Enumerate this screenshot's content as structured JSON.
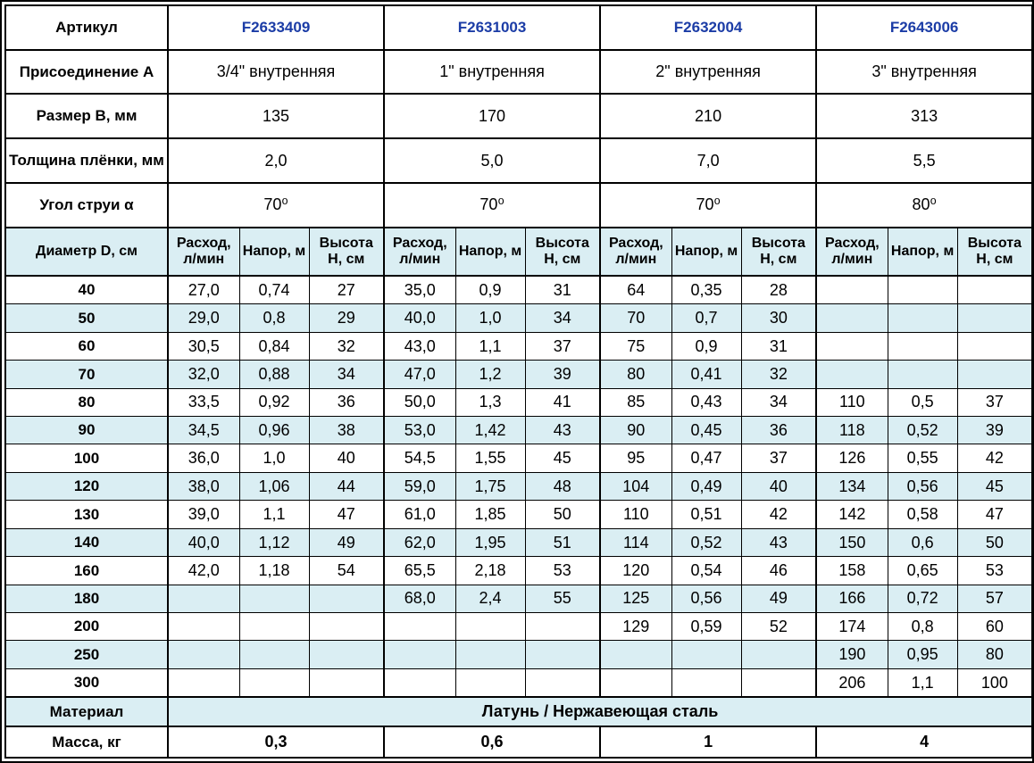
{
  "colors": {
    "accent_blue": "#1b3ca6",
    "row_alt_blue": "#daeef3",
    "border": "#000000"
  },
  "table": {
    "spec_rows": [
      {
        "label": "Артикул",
        "style": "article",
        "values": [
          "F2633409",
          "F2631003",
          "F2632004",
          "F2643006"
        ]
      },
      {
        "label": "Присоединение А",
        "values": [
          "3/4\" внутренняя",
          "1\" внутренняя",
          "2\" внутренняя",
          "3\" внутренняя"
        ]
      },
      {
        "label": "Размер В, мм",
        "values": [
          "135",
          "170",
          "210",
          "313"
        ]
      },
      {
        "label": "Толщина плёнки, мм",
        "values": [
          "2,0",
          "5,0",
          "7,0",
          "5,5"
        ]
      },
      {
        "label": "Угол струи α",
        "values": [
          "70⁰",
          "70⁰",
          "70⁰",
          "80⁰"
        ]
      }
    ],
    "subheader": {
      "label": "Диаметр D, см",
      "columns": [
        "Расход, л/мин",
        "Напор, м",
        "Высота Н, см"
      ],
      "groups": 4
    },
    "data_rows": [
      {
        "diameter": "40",
        "cells": [
          "27,0",
          "0,74",
          "27",
          "35,0",
          "0,9",
          "31",
          "64",
          "0,35",
          "28",
          "",
          "",
          ""
        ]
      },
      {
        "diameter": "50",
        "cells": [
          "29,0",
          "0,8",
          "29",
          "40,0",
          "1,0",
          "34",
          "70",
          "0,7",
          "30",
          "",
          "",
          ""
        ]
      },
      {
        "diameter": "60",
        "cells": [
          "30,5",
          "0,84",
          "32",
          "43,0",
          "1,1",
          "37",
          "75",
          "0,9",
          "31",
          "",
          "",
          ""
        ]
      },
      {
        "diameter": "70",
        "cells": [
          "32,0",
          "0,88",
          "34",
          "47,0",
          "1,2",
          "39",
          "80",
          "0,41",
          "32",
          "",
          "",
          ""
        ]
      },
      {
        "diameter": "80",
        "cells": [
          "33,5",
          "0,92",
          "36",
          "50,0",
          "1,3",
          "41",
          "85",
          "0,43",
          "34",
          "110",
          "0,5",
          "37"
        ]
      },
      {
        "diameter": "90",
        "cells": [
          "34,5",
          "0,96",
          "38",
          "53,0",
          "1,42",
          "43",
          "90",
          "0,45",
          "36",
          "118",
          "0,52",
          "39"
        ]
      },
      {
        "diameter": "100",
        "cells": [
          "36,0",
          "1,0",
          "40",
          "54,5",
          "1,55",
          "45",
          "95",
          "0,47",
          "37",
          "126",
          "0,55",
          "42"
        ]
      },
      {
        "diameter": "120",
        "cells": [
          "38,0",
          "1,06",
          "44",
          "59,0",
          "1,75",
          "48",
          "104",
          "0,49",
          "40",
          "134",
          "0,56",
          "45"
        ]
      },
      {
        "diameter": "130",
        "cells": [
          "39,0",
          "1,1",
          "47",
          "61,0",
          "1,85",
          "50",
          "110",
          "0,51",
          "42",
          "142",
          "0,58",
          "47"
        ]
      },
      {
        "diameter": "140",
        "cells": [
          "40,0",
          "1,12",
          "49",
          "62,0",
          "1,95",
          "51",
          "114",
          "0,52",
          "43",
          "150",
          "0,6",
          "50"
        ]
      },
      {
        "diameter": "160",
        "cells": [
          "42,0",
          "1,18",
          "54",
          "65,5",
          "2,18",
          "53",
          "120",
          "0,54",
          "46",
          "158",
          "0,65",
          "53"
        ]
      },
      {
        "diameter": "180",
        "cells": [
          "",
          "",
          "",
          "68,0",
          "2,4",
          "55",
          "125",
          "0,56",
          "49",
          "166",
          "0,72",
          "57"
        ]
      },
      {
        "diameter": "200",
        "cells": [
          "",
          "",
          "",
          "",
          "",
          "",
          "129",
          "0,59",
          "52",
          "174",
          "0,8",
          "60"
        ]
      },
      {
        "diameter": "250",
        "cells": [
          "",
          "",
          "",
          "",
          "",
          "",
          "",
          "",
          "",
          "190",
          "0,95",
          "80"
        ]
      },
      {
        "diameter": "300",
        "cells": [
          "",
          "",
          "",
          "",
          "",
          "",
          "",
          "",
          "",
          "206",
          "1,1",
          "100"
        ]
      }
    ],
    "material_row": {
      "label": "Материал",
      "value": "Латунь / Нержавеющая сталь"
    },
    "mass_row": {
      "label": "Масса, кг",
      "values": [
        "0,3",
        "0,6",
        "1",
        "4"
      ]
    }
  }
}
